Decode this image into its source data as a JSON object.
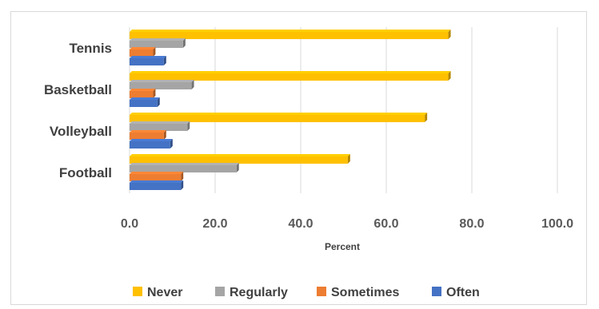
{
  "chart_data": {
    "type": "bar",
    "orientation": "horizontal",
    "style": "3d",
    "categories": [
      "Tennis",
      "Basketball",
      "Volleyball",
      "Football"
    ],
    "series": [
      {
        "name": "Never",
        "color": "#FFC000",
        "values": [
          74.5,
          74.5,
          69.0,
          51.0
        ]
      },
      {
        "name": "Regularly",
        "color": "#A5A5A5",
        "values": [
          12.5,
          14.5,
          13.5,
          25.0
        ]
      },
      {
        "name": "Sometimes",
        "color": "#ED7D31",
        "values": [
          5.5,
          5.5,
          8.0,
          12.0
        ]
      },
      {
        "name": "Often",
        "color": "#4472C4",
        "values": [
          8.0,
          6.5,
          9.5,
          12.0
        ]
      }
    ],
    "xlabel": "Percent",
    "ylabel": "",
    "xlim": [
      0,
      100
    ],
    "xticks": [
      "0.0",
      "20.0",
      "40.0",
      "60.0",
      "80.0",
      "100.0"
    ],
    "xtick_values": [
      0,
      20,
      40,
      60,
      80,
      100
    ],
    "grid": "vertical",
    "legend": "bottom"
  }
}
